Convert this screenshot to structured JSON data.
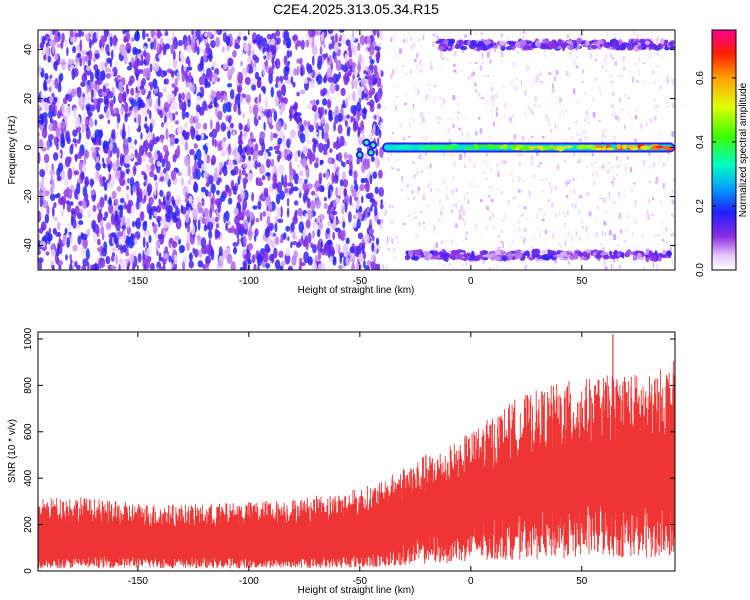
{
  "title": "C2E4.2025.313.05.34.R15",
  "chart_data": [
    {
      "type": "heatmap",
      "xlabel": "Height of straight line (km)",
      "ylabel": "Frequency (Hz)",
      "xlim": [
        -195,
        92
      ],
      "ylim": [
        -50,
        48
      ],
      "xticks": [
        -150,
        -100,
        -50,
        0,
        50
      ],
      "yticks": [
        -40,
        -20,
        0,
        20,
        40
      ],
      "colorbar": {
        "label": "Normalized spectral amplitude",
        "range": [
          0.0,
          0.75
        ],
        "ticks": [
          0.0,
          0.2,
          0.4,
          0.6
        ],
        "tick_labels": [
          "0.0",
          "0.2",
          "0.4",
          "0.6"
        ]
      },
      "features": [
        {
          "kind": "noise",
          "x_range": [
            -195,
            -40
          ],
          "y_range": [
            -50,
            48
          ],
          "level": 0.12
        },
        {
          "kind": "band",
          "x_range": [
            -40,
            92
          ],
          "y": 0,
          "level_start": 0.3,
          "level_end": 0.7
        },
        {
          "kind": "band",
          "x_range": [
            -15,
            92
          ],
          "y": 42,
          "level": 0.1
        },
        {
          "kind": "band",
          "x_range": [
            -30,
            92
          ],
          "y": -44,
          "level": 0.1
        }
      ]
    },
    {
      "type": "area",
      "xlabel": "Height of straight line (km)",
      "ylabel": "SNR (10 * v/v)",
      "xlim": [
        -195,
        92
      ],
      "ylim": [
        0,
        1030
      ],
      "xticks": [
        -150,
        -100,
        -50,
        0,
        50
      ],
      "yticks": [
        0,
        200,
        400,
        600,
        800,
        1000
      ],
      "color": "#ef3434",
      "x": [
        -195,
        -180,
        -160,
        -140,
        -120,
        -100,
        -80,
        -60,
        -40,
        -30,
        -20,
        -10,
        0,
        10,
        20,
        30,
        40,
        50,
        60,
        70,
        80,
        92
      ],
      "upper_envelope": [
        260,
        270,
        250,
        240,
        240,
        250,
        260,
        280,
        320,
        380,
        420,
        450,
        500,
        560,
        620,
        650,
        680,
        690,
        700,
        720,
        700,
        760
      ],
      "lower_envelope": [
        50,
        60,
        70,
        60,
        60,
        60,
        60,
        70,
        80,
        120,
        150,
        170,
        200,
        220,
        250,
        260,
        270,
        280,
        300,
        280,
        290,
        300
      ],
      "peak": {
        "x": 64,
        "y": 1020
      }
    }
  ]
}
